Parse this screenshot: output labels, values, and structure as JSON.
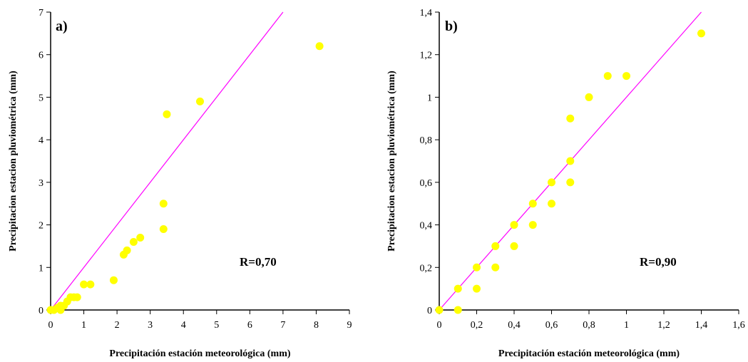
{
  "chart_data": [
    {
      "type": "scatter",
      "panel_label": "a)",
      "xlabel": "Precipitación estación meteorológica (mm)",
      "ylabel": "Precipitacion estacion pluviométrica (mm)",
      "xlim": [
        0,
        9
      ],
      "ylim": [
        0,
        7
      ],
      "xticks": [
        "0",
        "1",
        "2",
        "3",
        "4",
        "5",
        "6",
        "7",
        "8",
        "9"
      ],
      "yticks": [
        "0",
        "1",
        "2",
        "3",
        "4",
        "5",
        "6",
        "7"
      ],
      "annotation": "R=0,70",
      "grid": false,
      "point_color": "#ffff00",
      "line_color": "#ff00ff",
      "reference_line": {
        "x": [
          0,
          7
        ],
        "y": [
          0,
          7
        ]
      },
      "x": [
        0.0,
        0.1,
        0.2,
        0.3,
        0.3,
        0.4,
        0.5,
        0.6,
        0.7,
        0.8,
        1.0,
        1.2,
        1.9,
        2.2,
        2.3,
        2.5,
        2.7,
        3.4,
        3.4,
        3.5,
        4.5,
        8.1
      ],
      "y": [
        0.0,
        0.0,
        0.05,
        0.1,
        0.0,
        0.1,
        0.2,
        0.3,
        0.3,
        0.3,
        0.6,
        0.6,
        0.7,
        1.3,
        1.4,
        1.6,
        1.7,
        2.5,
        1.9,
        4.6,
        4.9,
        6.2
      ]
    },
    {
      "type": "scatter",
      "panel_label": "b)",
      "xlabel": "Precipitación estación meteorológica (mm)",
      "ylabel": "Precipitacion estacion pluviométrica (mm)",
      "xlim": [
        0,
        1.6
      ],
      "ylim": [
        0,
        1.4
      ],
      "xticks": [
        "0",
        "0,2",
        "0,4",
        "0,6",
        "0,8",
        "1",
        "1,2",
        "1,4",
        "1,6"
      ],
      "yticks": [
        "0",
        "0,2",
        "0,4",
        "0,6",
        "0,8",
        "1",
        "1,2",
        "1,4"
      ],
      "annotation": "R=0,90",
      "grid": false,
      "point_color": "#ffff00",
      "line_color": "#ff00ff",
      "reference_line": {
        "x": [
          0,
          1.4
        ],
        "y": [
          0,
          1.4
        ]
      },
      "x": [
        0.0,
        0.1,
        0.1,
        0.2,
        0.2,
        0.3,
        0.3,
        0.4,
        0.4,
        0.5,
        0.5,
        0.6,
        0.6,
        0.7,
        0.7,
        0.7,
        0.8,
        0.9,
        1.0,
        1.4
      ],
      "y": [
        0.0,
        0.1,
        0.0,
        0.2,
        0.1,
        0.3,
        0.2,
        0.4,
        0.3,
        0.5,
        0.4,
        0.6,
        0.5,
        0.9,
        0.7,
        0.6,
        1.0,
        1.1,
        1.1,
        1.3
      ]
    }
  ]
}
